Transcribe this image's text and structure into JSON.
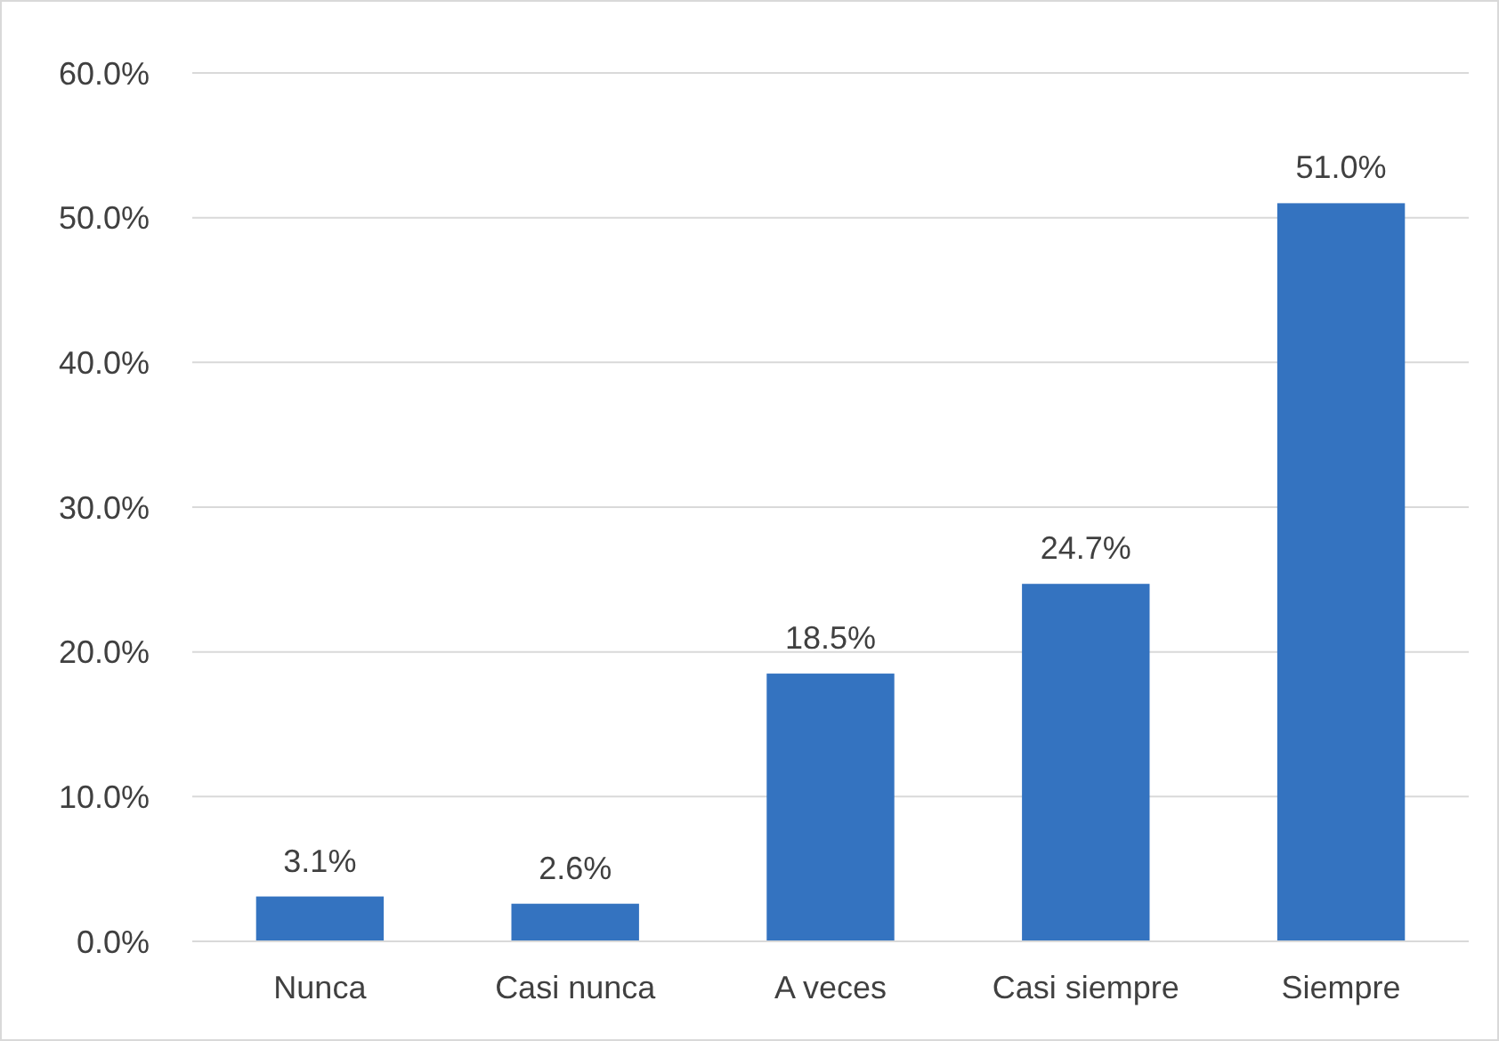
{
  "chart_data": {
    "type": "bar",
    "categories": [
      "Nunca",
      "Casi nunca",
      "A veces",
      "Casi siempre",
      "Siempre"
    ],
    "values": [
      3.1,
      2.6,
      18.5,
      24.7,
      51.0
    ],
    "value_labels": [
      "3.1%",
      "2.6%",
      "18.5%",
      "24.7%",
      "51.0%"
    ],
    "color": "#3473c0",
    "ylim": [
      0,
      60
    ],
    "yticks": [
      {
        "value": 0,
        "label": "0.0%"
      },
      {
        "value": 10,
        "label": "10.0%"
      },
      {
        "value": 20,
        "label": "20.0%"
      },
      {
        "value": 30,
        "label": "30.0%"
      },
      {
        "value": 40,
        "label": "40.0%"
      },
      {
        "value": 50,
        "label": "50.0%"
      },
      {
        "value": 60,
        "label": "60.0%"
      }
    ],
    "grid": "y"
  }
}
